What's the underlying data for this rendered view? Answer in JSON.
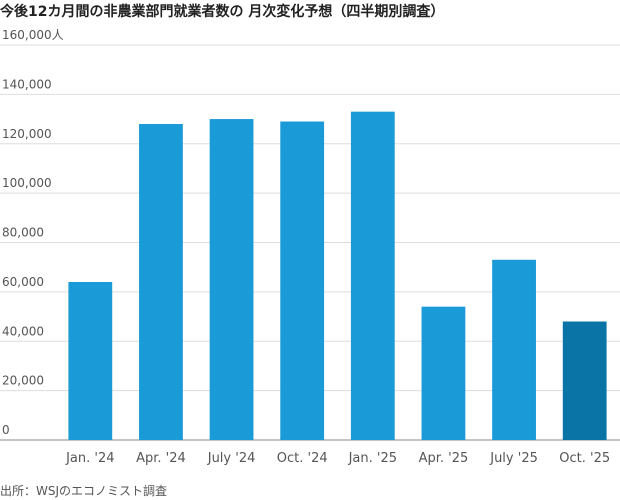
{
  "chart_data": {
    "type": "bar",
    "title": "今後12カ月間の非農業部門就業者数の 月次変化予想（四半期別調査）",
    "source": "出所：WSJのエコノミスト調査",
    "categories": [
      "Jan. '24",
      "Apr. '24",
      "July '24",
      "Oct. '24",
      "Jan. '25",
      "Apr. '25",
      "July '25",
      "Oct. '25"
    ],
    "values": [
      64000,
      128000,
      130000,
      129000,
      133000,
      54000,
      73000,
      48000
    ],
    "colors": [
      "#1a9ad6",
      "#1a9ad6",
      "#1a9ad6",
      "#1a9ad6",
      "#1a9ad6",
      "#1a9ad6",
      "#1a9ad6",
      "#0a74a6"
    ],
    "ylim": [
      0,
      160000
    ],
    "yticks": [
      0,
      {
        "value": 20000,
        "label": "20,000"
      },
      {
        "value": 40000,
        "label": "40,000"
      },
      {
        "value": 60000,
        "label": "60,000"
      },
      {
        "value": 80000,
        "label": "80,000"
      },
      {
        "value": 100000,
        "label": "100,000"
      },
      {
        "value": 120000,
        "label": "120,000"
      },
      {
        "value": 140000,
        "label": "140,000"
      },
      {
        "value": 160000,
        "label": "160,000人"
      }
    ],
    "grid": true
  }
}
